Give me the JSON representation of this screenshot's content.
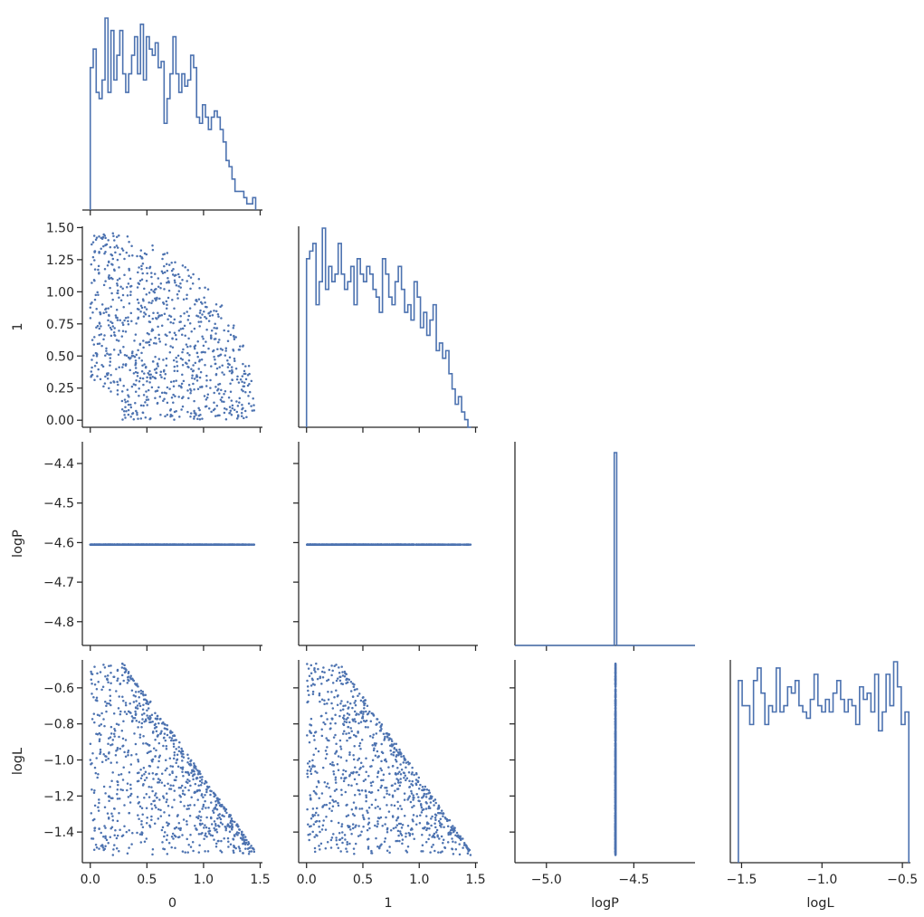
{
  "chart_data": {
    "type": "scatter",
    "style": "corner pair plot",
    "grid": false,
    "color": "#4c72b0",
    "variables": [
      "0",
      "1",
      "logP",
      "logL"
    ],
    "axis_labels": {
      "x": [
        "0",
        "1",
        "logP",
        "logL"
      ],
      "y": [
        "",
        "1",
        "logP",
        "logL"
      ]
    },
    "ranges": {
      "0": [
        -0.07,
        1.52
      ],
      "1": [
        -0.07,
        1.52
      ],
      "logP": [
        -5.18,
        -4.15
      ],
      "logL": [
        -1.57,
        -0.45
      ]
    },
    "y_ranges": {
      "1": [
        -0.055,
        1.51
      ],
      "logP": [
        -4.86,
        -4.345
      ],
      "logL": [
        -1.57,
        -0.445
      ]
    },
    "ticks": {
      "0": {
        "values": [
          0.0,
          0.5,
          1.0,
          1.5
        ],
        "labels": [
          "0.0",
          "0.5",
          "1.0",
          "1.5"
        ]
      },
      "1": {
        "values": [
          0.0,
          0.5,
          1.0,
          1.5
        ],
        "labels": [
          "0.0",
          "0.5",
          "1.0",
          "1.5"
        ]
      },
      "logP": {
        "values": [
          -5.0,
          -4.5
        ],
        "labels": [
          "−5.0",
          "−4.5"
        ]
      },
      "logL": {
        "values": [
          -1.5,
          -1.0,
          -0.5
        ],
        "labels": [
          "−1.5",
          "−1.0",
          "−0.5"
        ]
      }
    },
    "y_ticks": {
      "1": {
        "values": [
          0.0,
          0.25,
          0.5,
          0.75,
          1.0,
          1.25,
          1.5
        ],
        "labels": [
          "0.00",
          "0.25",
          "0.50",
          "0.75",
          "1.00",
          "1.25",
          "1.50"
        ]
      },
      "logP": {
        "values": [
          -4.8,
          -4.7,
          -4.6,
          -4.5,
          -4.4
        ],
        "labels": [
          "−4.8",
          "−4.7",
          "−4.6",
          "−4.5",
          "−4.4"
        ]
      },
      "logL": {
        "values": [
          -1.4,
          -1.2,
          -1.0,
          -0.8,
          -0.6
        ],
        "labels": [
          "−1.4",
          "−1.2",
          "−1.0",
          "−0.8",
          "−0.6"
        ]
      }
    },
    "constant_value": {
      "logP": -4.605
    },
    "histograms": {
      "0": {
        "edges_range": [
          0.0,
          1.46
        ],
        "counts": [
          23,
          26,
          19,
          18,
          21,
          31,
          19,
          29,
          21,
          25,
          29,
          22,
          19,
          22,
          25,
          28,
          22,
          30,
          21,
          28,
          26,
          25,
          27,
          23,
          24,
          14,
          18,
          22,
          28,
          22,
          19,
          22,
          20,
          21,
          25,
          23,
          15,
          14,
          17,
          15,
          13,
          15,
          16,
          15,
          13,
          11,
          8,
          7,
          5,
          3,
          3,
          3,
          2,
          1,
          1,
          2
        ]
      },
      "1": {
        "edges_range": [
          0.0,
          1.46
        ],
        "counts": [
          22,
          23,
          24,
          16,
          19,
          26,
          18,
          21,
          19,
          20,
          24,
          20,
          18,
          19,
          21,
          16,
          22,
          20,
          19,
          21,
          20,
          18,
          17,
          15,
          22,
          20,
          17,
          16,
          19,
          21,
          18,
          15,
          16,
          14,
          19,
          17,
          13,
          15,
          12,
          14,
          16,
          10,
          11,
          9,
          10,
          7,
          5,
          3,
          4,
          2,
          1,
          0
        ]
      },
      "logP": {
        "bin_center": -4.605,
        "bin_width": 0.014
      },
      "logL": {
        "edges_range": [
          -1.52,
          -0.46
        ],
        "counts": [
          29,
          25,
          25,
          22,
          29,
          31,
          27,
          22,
          25,
          24,
          31,
          24,
          25,
          28,
          27,
          29,
          25,
          24,
          23,
          26,
          30,
          25,
          24,
          26,
          24,
          27,
          29,
          26,
          24,
          26,
          25,
          22,
          28,
          26,
          27,
          24,
          30,
          21,
          24,
          30,
          25,
          32,
          28,
          22,
          24
        ]
      }
    }
  }
}
